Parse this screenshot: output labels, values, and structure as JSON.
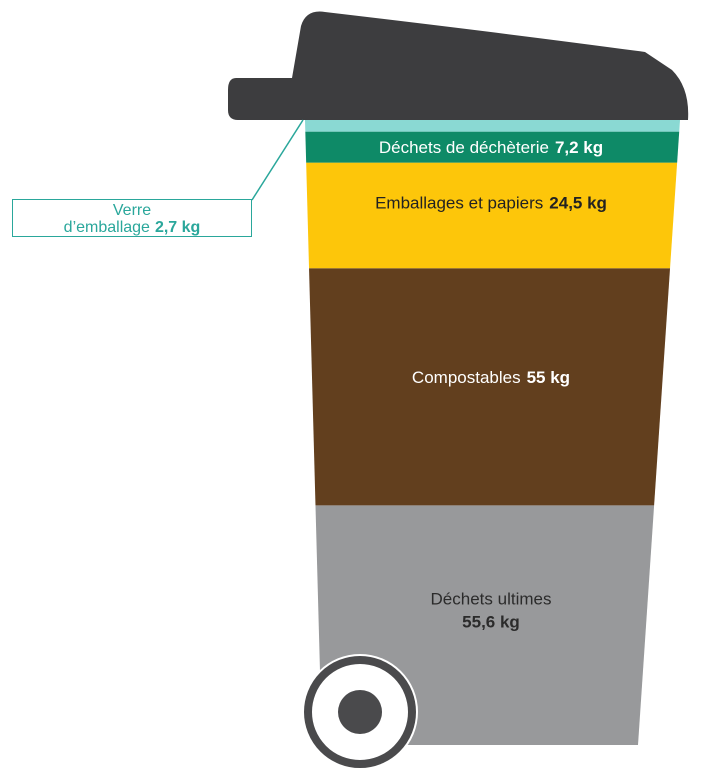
{
  "chart_data": {
    "type": "bin",
    "segments": [
      {
        "label": "Déchets de déchèterie",
        "value": 7.2,
        "value_label": "7,2 kg",
        "color": "#0e8a67",
        "text_color": "#ffffff"
      },
      {
        "label": "Emballages et papiers",
        "value": 24.5,
        "value_label": "24,5 kg",
        "color": "#fdc60a",
        "text_color": "#222222"
      },
      {
        "label": "Compostables",
        "value": 55,
        "value_label": "55 kg",
        "color": "#623f1e",
        "text_color": "#ffffff"
      },
      {
        "label": "Déchets ultimes",
        "value": 55.6,
        "value_label": "55,6 kg",
        "color": "#98999b",
        "text_color": "#2b2b2b"
      },
      {
        "label": [
          "Verre",
          "d’emballage"
        ],
        "value": 2.7,
        "value_label": "2,7 kg",
        "color": "#8ad9d3",
        "text_color": "#2aa79b"
      }
    ]
  }
}
